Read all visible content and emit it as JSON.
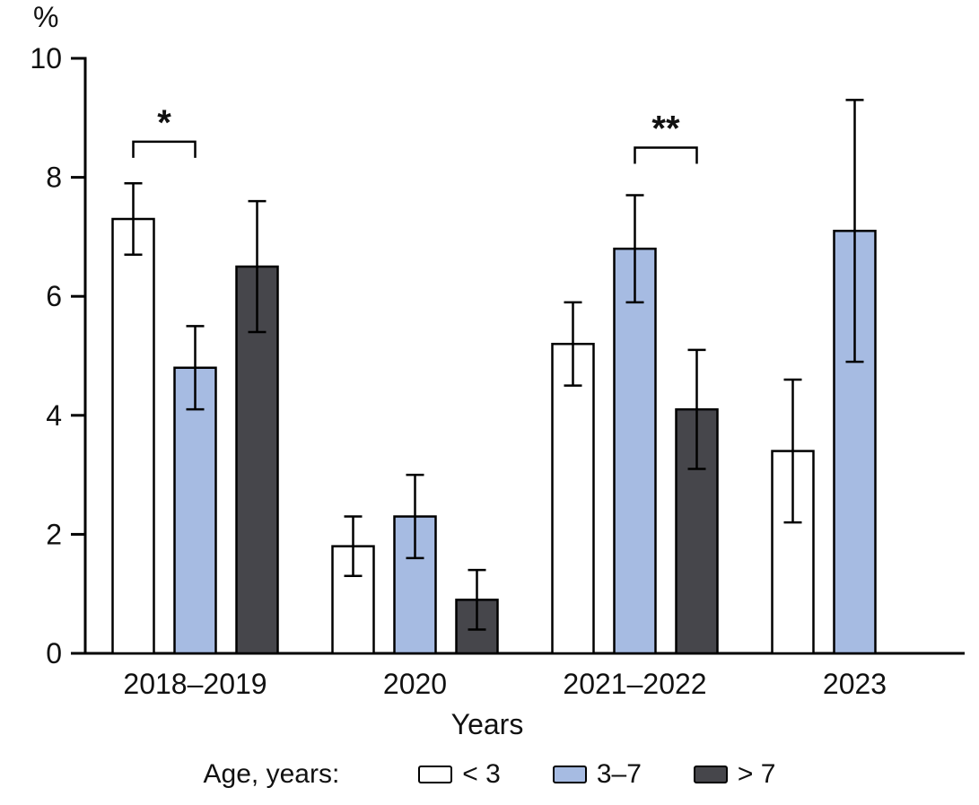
{
  "chart_data": {
    "type": "bar",
    "title": "",
    "xlabel": "Years",
    "ylabel": "%",
    "ylim": [
      0,
      10
    ],
    "yticks": [
      0,
      2,
      4,
      6,
      8,
      10
    ],
    "grid": false,
    "legend_position": "bottom",
    "legend_title": "Age, years:",
    "categories": [
      "2018–2019",
      "2020",
      "2021–2022",
      "2023"
    ],
    "series": [
      {
        "name": "< 3",
        "color": "#ffffff",
        "values": [
          7.3,
          1.8,
          5.2,
          3.4
        ],
        "errors": [
          0.6,
          0.5,
          0.7,
          1.2
        ]
      },
      {
        "name": "3–7",
        "color": "#a6bbe2",
        "values": [
          4.8,
          2.3,
          6.8,
          7.1
        ],
        "errors": [
          0.7,
          0.7,
          0.9,
          2.2
        ]
      },
      {
        "name": "> 7",
        "color": "#46464b",
        "values": [
          6.5,
          0.9,
          4.1,
          null
        ],
        "errors": [
          1.1,
          0.5,
          1.0,
          null
        ]
      }
    ],
    "annotations": [
      {
        "label": "*",
        "category": 0,
        "from_series": 0,
        "to_series": 1,
        "y": 8.6
      },
      {
        "label": "**",
        "category": 2,
        "from_series": 1,
        "to_series": 2,
        "y": 8.5
      }
    ]
  }
}
